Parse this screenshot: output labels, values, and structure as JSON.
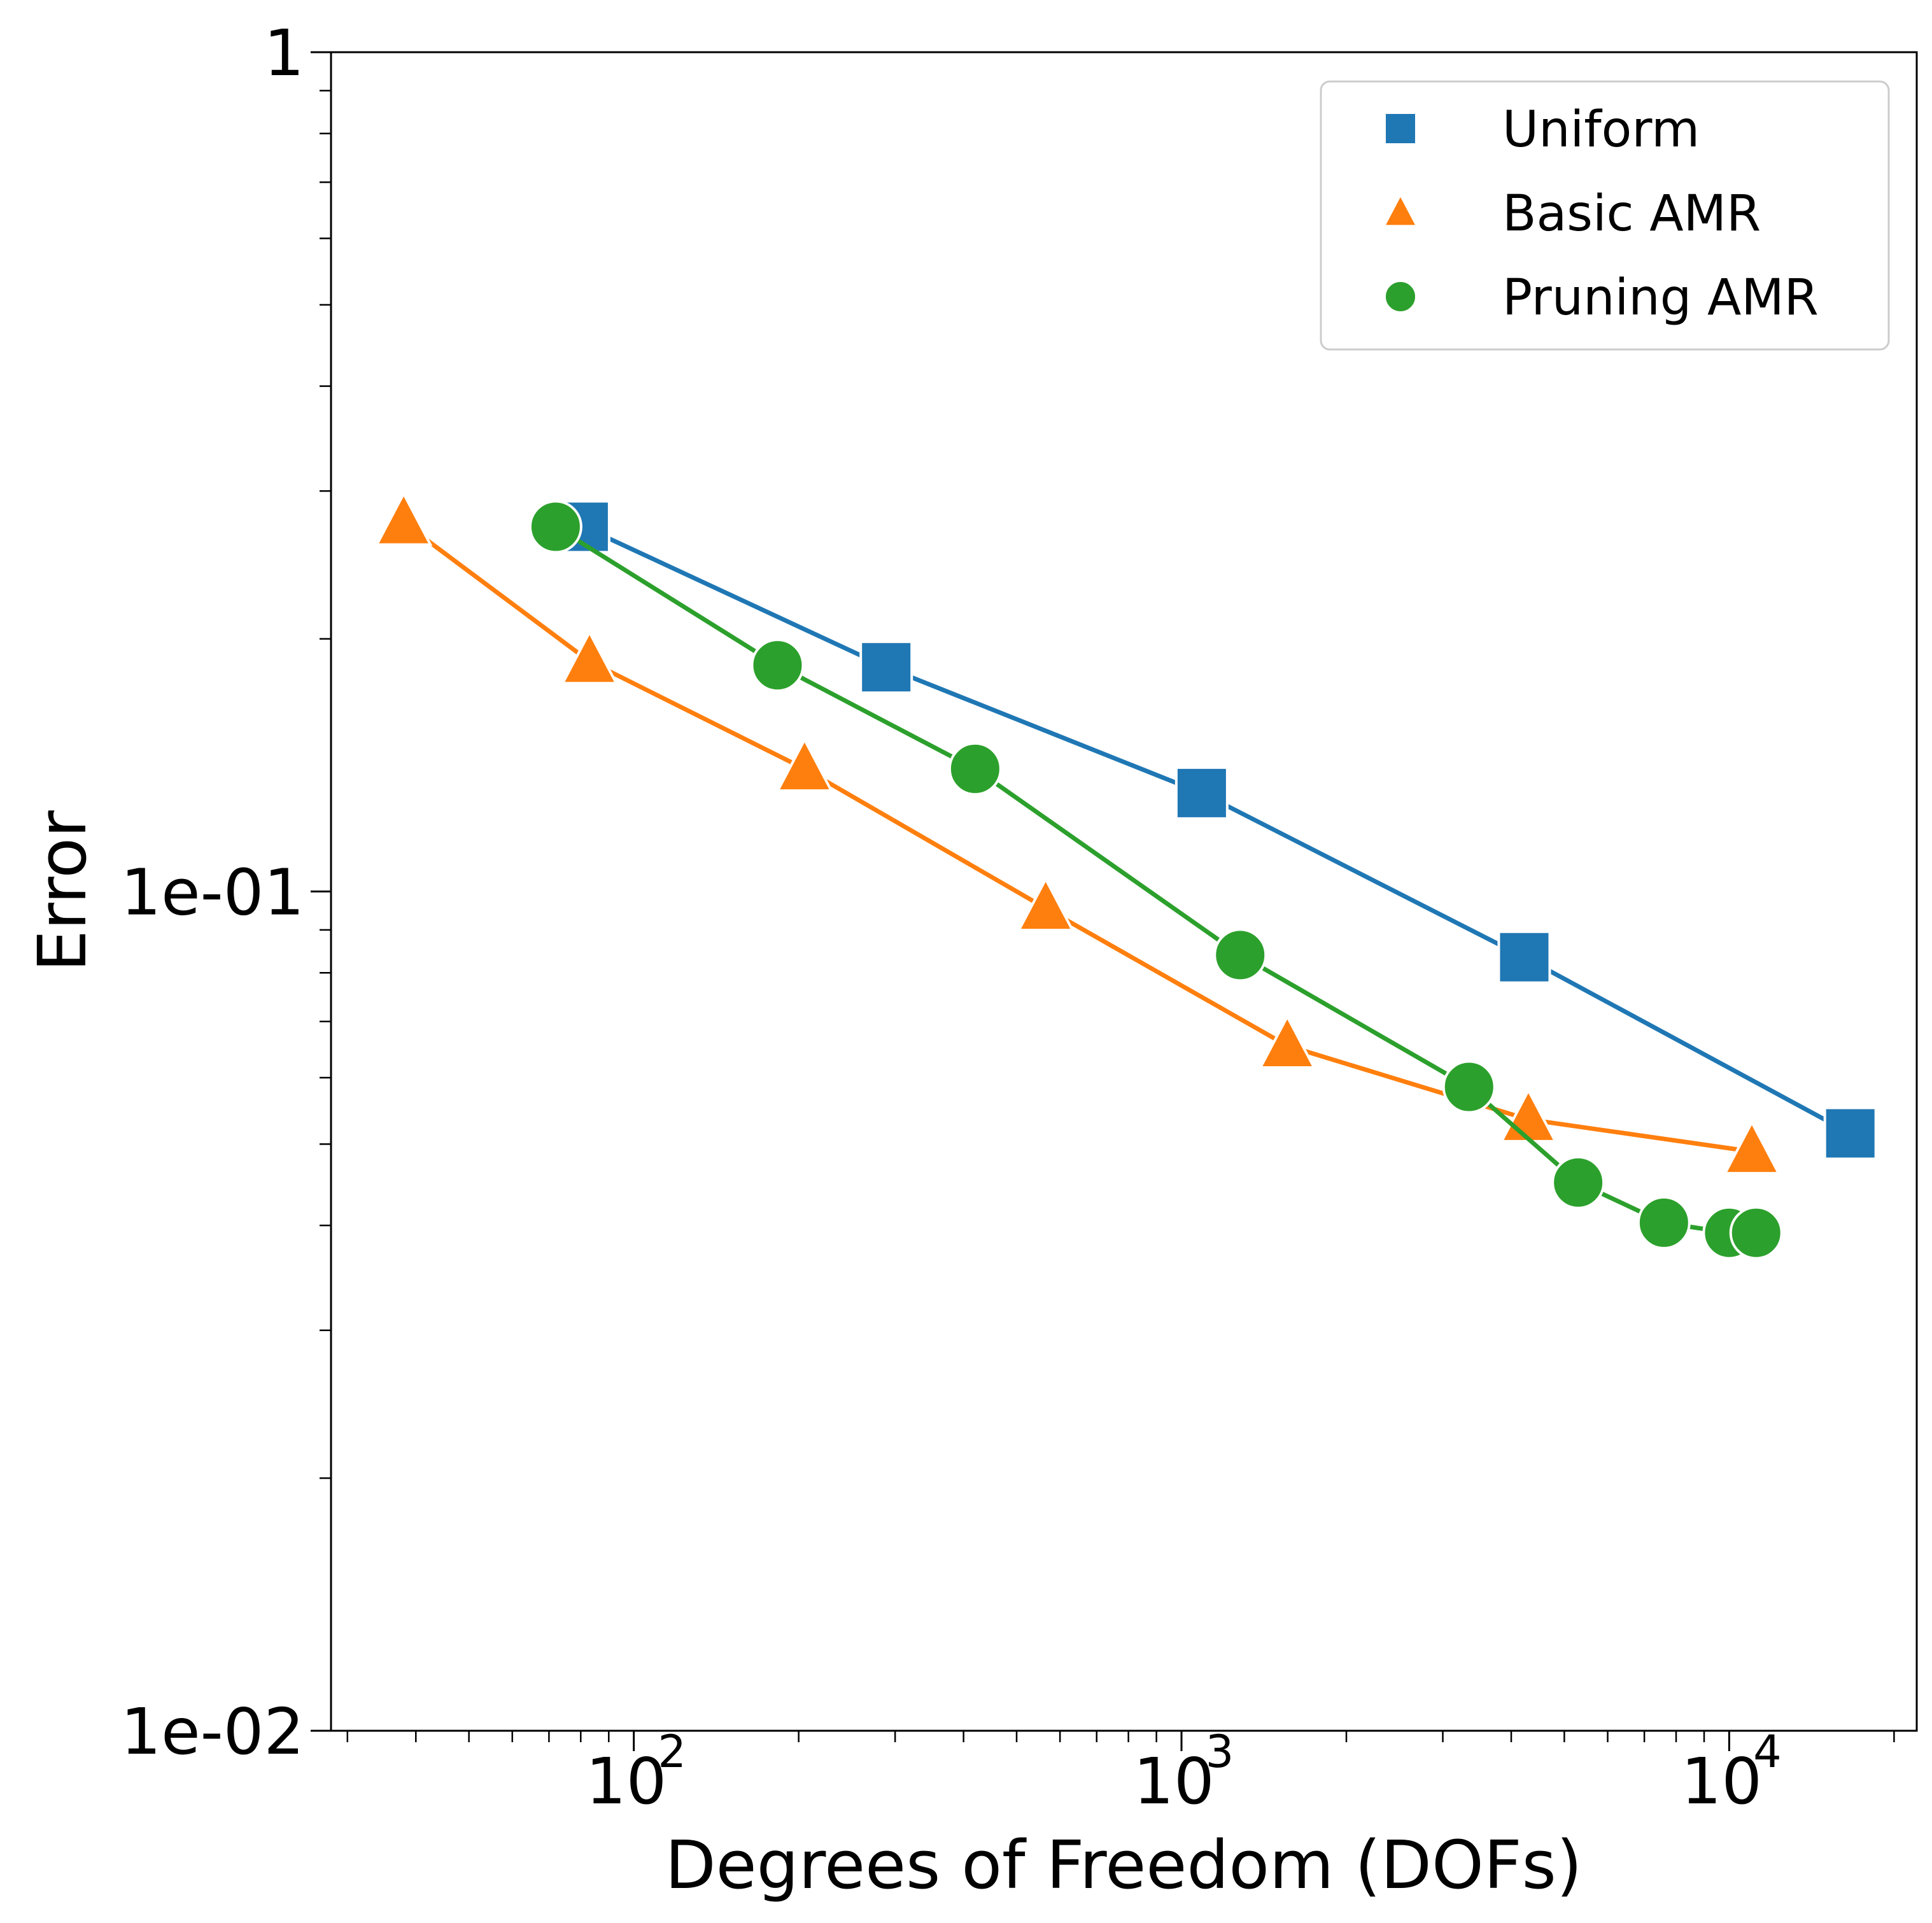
{
  "chart_data": {
    "type": "line",
    "title": "",
    "xlabel": "Degrees of Freedom (DOFs)",
    "ylabel": "Error",
    "xscale": "log",
    "yscale": "log",
    "xlim": [
      28,
      22000
    ],
    "ylim": [
      0.01,
      1
    ],
    "x_ticks": [
      {
        "value": 100,
        "base": "10",
        "exp": "2"
      },
      {
        "value": 1000,
        "base": "10",
        "exp": "3"
      },
      {
        "value": 10000,
        "base": "10",
        "exp": "4"
      }
    ],
    "y_ticks": [
      {
        "value": 1,
        "label": "1"
      },
      {
        "value": 0.1,
        "label": "1e-01"
      },
      {
        "value": 0.01,
        "label": "1e-02"
      }
    ],
    "legend_position": "top-right",
    "series": [
      {
        "name": "Uniform",
        "marker": "square",
        "color": "#1f77b4",
        "x": [
          81,
          289,
          1089,
          4225,
          16641
        ],
        "y": [
          0.272,
          0.185,
          0.131,
          0.0835,
          0.0515
        ]
      },
      {
        "name": "Basic AMR",
        "marker": "triangle",
        "color": "#ff7f0e",
        "x": [
          38,
          83,
          205,
          565,
          1560,
          4300,
          11000
        ],
        "y": [
          0.275,
          0.188,
          0.14,
          0.0955,
          0.0655,
          0.0535,
          0.049
        ]
      },
      {
        "name": "Pruning AMR",
        "marker": "circle",
        "color": "#2ca02c",
        "x": [
          72,
          183,
          420,
          1280,
          3350,
          5300,
          7600,
          10000,
          11200
        ],
        "y": [
          0.272,
          0.186,
          0.14,
          0.084,
          0.0585,
          0.045,
          0.0403,
          0.0392,
          0.0392
        ]
      }
    ]
  }
}
